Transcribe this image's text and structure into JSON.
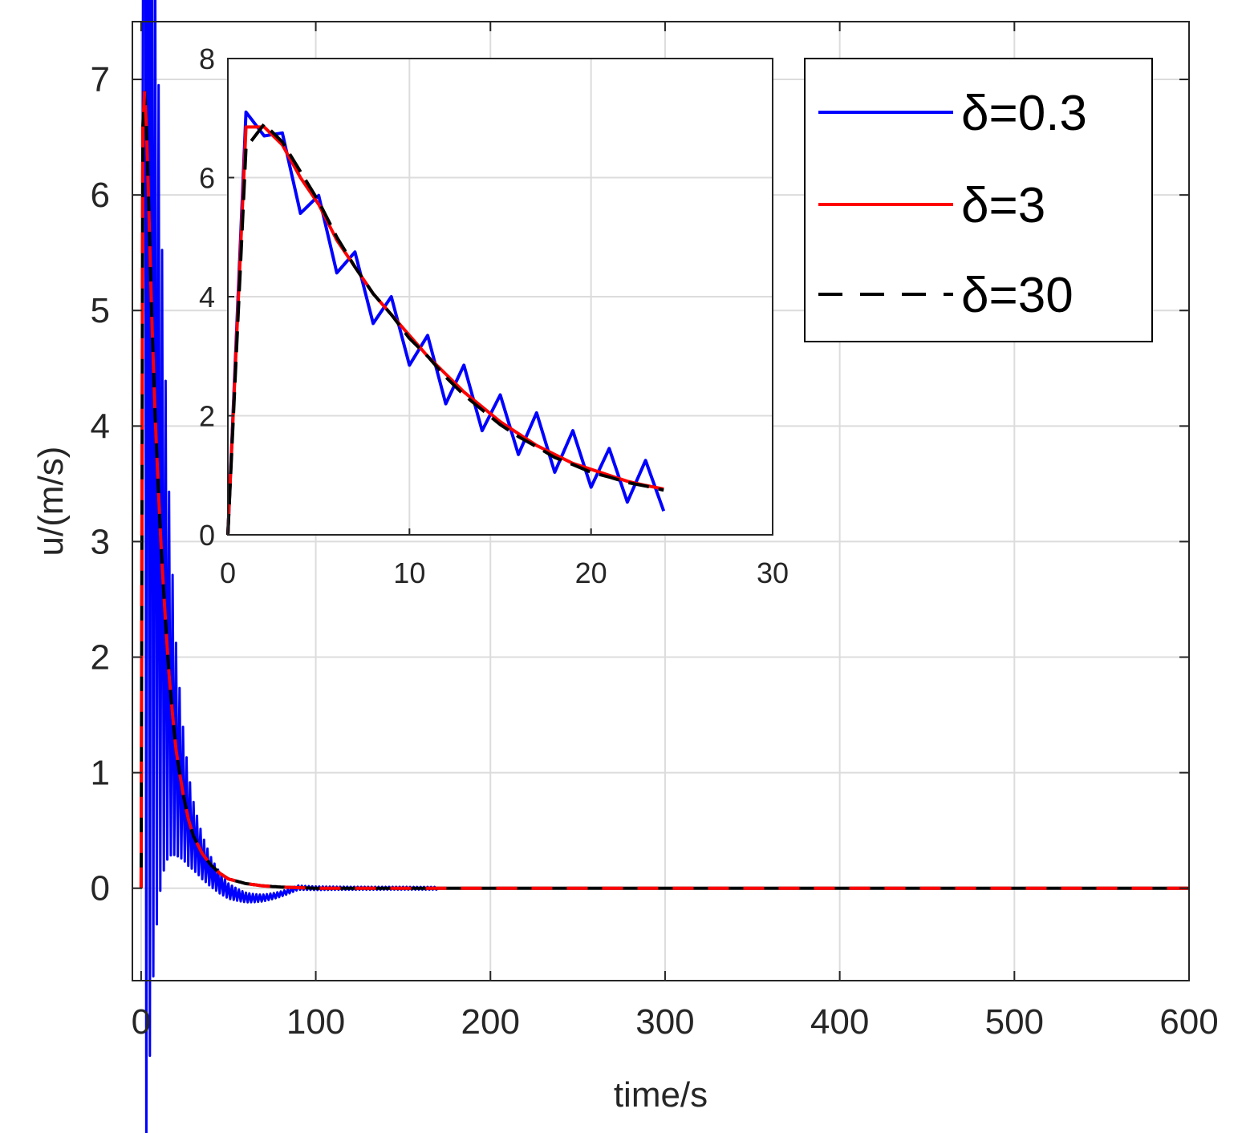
{
  "chart_data": [
    {
      "name": "main",
      "type": "line",
      "xlabel": "time/s",
      "ylabel": "u/(m/s)",
      "xlim": [
        -5,
        600
      ],
      "ylim": [
        -0.8,
        7.5
      ],
      "xticks": [
        0,
        100,
        200,
        300,
        400,
        500,
        600
      ],
      "yticks": [
        0,
        1,
        2,
        3,
        4,
        5,
        6,
        7
      ],
      "xtick_labels": [
        "0",
        "100",
        "200",
        "300",
        "400",
        "500",
        "600"
      ],
      "ytick_labels": [
        "0",
        "1",
        "2",
        "3",
        "4",
        "5",
        "6",
        "7"
      ],
      "grid": true,
      "legend_position": "top-right",
      "series": [
        {
          "name": "δ=0.3",
          "color": "#0000ff",
          "style": "solid",
          "model": "oscillating",
          "amplitude_from": 3,
          "amplitude_to": 0.09,
          "amplitude_decay": 0.045,
          "period": 2
        },
        {
          "name": "δ=3",
          "color": "#ff0000",
          "style": "solid",
          "model": "smooth"
        },
        {
          "name": "δ=30",
          "color": "#000000",
          "style": "dashed",
          "model": "smooth"
        }
      ],
      "smooth_curve": {
        "x": [
          0,
          1,
          2,
          3,
          4,
          6,
          8,
          10,
          12,
          14,
          16,
          18,
          20,
          22,
          24,
          27,
          30,
          35,
          40,
          45,
          50,
          60,
          70,
          80,
          100,
          130,
          600
        ],
        "y": [
          0,
          6.6,
          6.9,
          6.6,
          6.1,
          5.0,
          4.1,
          3.4,
          2.8,
          2.3,
          1.85,
          1.5,
          1.2,
          1.0,
          0.82,
          0.6,
          0.45,
          0.3,
          0.2,
          0.13,
          0.08,
          0.04,
          0.02,
          0.01,
          0.0,
          0.0,
          0.0
        ]
      }
    },
    {
      "name": "inset",
      "type": "line",
      "xlim": [
        0,
        30
      ],
      "ylim": [
        0,
        8
      ],
      "xticks": [
        0,
        10,
        20,
        30
      ],
      "yticks": [
        0,
        2,
        4,
        6,
        8
      ],
      "xtick_labels": [
        "0",
        "10",
        "20",
        "30"
      ],
      "ytick_labels": [
        "0",
        "2",
        "4",
        "6",
        "8"
      ],
      "grid": true,
      "series": [
        {
          "name": "δ=0.3",
          "color": "#0000ff",
          "style": "solid",
          "x": [
            0,
            1,
            2,
            3,
            4,
            5,
            6,
            7,
            8,
            9,
            10,
            11,
            12,
            13,
            14,
            15,
            16,
            17,
            18,
            19,
            20,
            21,
            22,
            23,
            24
          ],
          "y": [
            0,
            7.1,
            6.7,
            6.75,
            5.4,
            5.7,
            4.4,
            4.75,
            3.55,
            4.0,
            2.85,
            3.35,
            2.2,
            2.85,
            1.75,
            2.35,
            1.35,
            2.05,
            1.05,
            1.75,
            0.8,
            1.45,
            0.55,
            1.25,
            0.4
          ]
        },
        {
          "name": "δ=3",
          "color": "#ff0000",
          "style": "solid",
          "x": [
            0,
            1,
            2,
            3,
            4,
            5,
            6,
            7,
            8,
            9,
            10,
            11,
            12,
            13,
            14,
            15,
            16,
            17,
            18,
            19,
            20,
            21,
            22,
            23,
            24
          ],
          "y": [
            0,
            6.85,
            6.85,
            6.55,
            6.0,
            5.55,
            4.95,
            4.5,
            4.05,
            3.7,
            3.35,
            3.0,
            2.7,
            2.4,
            2.15,
            1.9,
            1.7,
            1.5,
            1.35,
            1.2,
            1.1,
            1.0,
            0.9,
            0.83,
            0.77
          ]
        },
        {
          "name": "δ=30",
          "color": "#000000",
          "style": "dashed",
          "x": [
            0,
            1,
            2,
            3,
            4,
            5,
            6,
            7,
            8,
            9,
            10,
            11,
            12,
            13,
            14,
            15,
            16,
            17,
            18,
            19,
            20,
            21,
            22,
            23,
            24
          ],
          "y": [
            0,
            6.5,
            6.9,
            6.6,
            6.1,
            5.6,
            5.0,
            4.5,
            4.05,
            3.7,
            3.3,
            3.0,
            2.65,
            2.35,
            2.1,
            1.85,
            1.65,
            1.48,
            1.3,
            1.18,
            1.05,
            0.97,
            0.88,
            0.82,
            0.75
          ]
        }
      ]
    }
  ]
}
